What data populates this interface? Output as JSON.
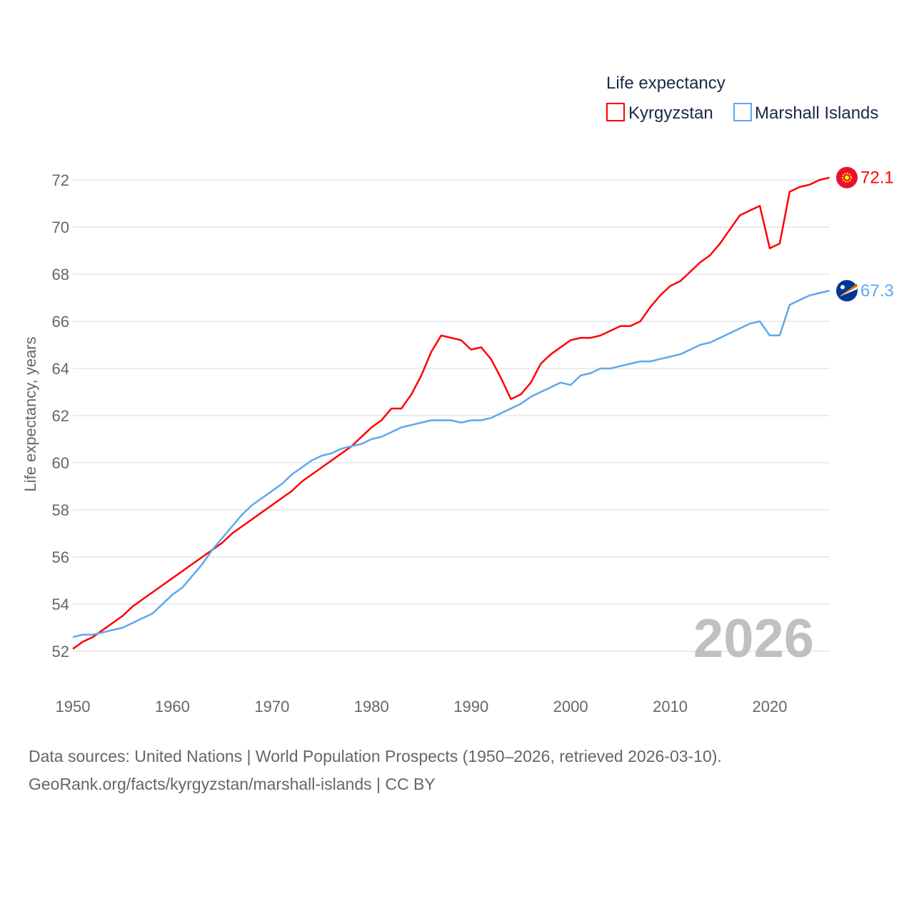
{
  "chart_data": {
    "type": "line",
    "legend_title": "Life expectancy",
    "legend_position": "top-right",
    "ylabel": "Life expectancy, years",
    "xlabel": "",
    "xlim": [
      1950,
      2026
    ],
    "ylim": [
      51,
      73
    ],
    "x_ticks": [
      1950,
      1960,
      1970,
      1980,
      1990,
      2000,
      2010,
      2020
    ],
    "y_ticks": [
      52,
      54,
      56,
      58,
      60,
      62,
      64,
      66,
      68,
      70,
      72
    ],
    "grid": true,
    "year_watermark": "2026",
    "x_start": 1950,
    "series": [
      {
        "name": "Kyrgyzstan",
        "color": "#ff0000",
        "end_label": "72.1",
        "flag": "kyrgyzstan-flag",
        "values": [
          52.1,
          52.4,
          52.6,
          52.9,
          53.2,
          53.5,
          53.9,
          54.2,
          54.5,
          54.8,
          55.1,
          55.4,
          55.7,
          56.0,
          56.3,
          56.6,
          57.0,
          57.3,
          57.6,
          57.9,
          58.2,
          58.5,
          58.8,
          59.2,
          59.5,
          59.8,
          60.1,
          60.4,
          60.7,
          61.1,
          61.5,
          61.8,
          62.3,
          62.3,
          62.9,
          63.7,
          64.7,
          65.4,
          65.3,
          65.2,
          64.8,
          64.9,
          64.4,
          63.6,
          62.7,
          62.9,
          63.4,
          64.2,
          64.6,
          64.9,
          65.2,
          65.3,
          65.3,
          65.4,
          65.6,
          65.8,
          65.8,
          66.0,
          66.6,
          67.1,
          67.5,
          67.7,
          68.1,
          68.5,
          68.8,
          69.3,
          69.9,
          70.5,
          70.7,
          70.9,
          69.1,
          69.3,
          71.5,
          71.7,
          71.8,
          72.0,
          72.1
        ]
      },
      {
        "name": "Marshall Islands",
        "color": "#5ea8ec",
        "end_label": "67.3",
        "flag": "marshall-islands-flag",
        "values": [
          52.6,
          52.7,
          52.7,
          52.8,
          52.9,
          53.0,
          53.2,
          53.4,
          53.6,
          54.0,
          54.4,
          54.7,
          55.2,
          55.7,
          56.3,
          56.8,
          57.3,
          57.8,
          58.2,
          58.5,
          58.8,
          59.1,
          59.5,
          59.8,
          60.1,
          60.3,
          60.4,
          60.6,
          60.7,
          60.8,
          61.0,
          61.1,
          61.3,
          61.5,
          61.6,
          61.7,
          61.8,
          61.8,
          61.8,
          61.7,
          61.8,
          61.8,
          61.9,
          62.1,
          62.3,
          62.5,
          62.8,
          63.0,
          63.2,
          63.4,
          63.3,
          63.7,
          63.8,
          64.0,
          64.0,
          64.1,
          64.2,
          64.3,
          64.3,
          64.4,
          64.5,
          64.6,
          64.8,
          65.0,
          65.1,
          65.3,
          65.5,
          65.7,
          65.9,
          66.0,
          65.4,
          65.4,
          66.7,
          66.9,
          67.1,
          67.2,
          67.3
        ]
      }
    ]
  },
  "footer": {
    "line1": "Data sources: United Nations | World Population Prospects (1950–2026, retrieved 2026-03-10).",
    "line2": "GeoRank.org/facts/kyrgyzstan/marshall-islands | CC BY"
  }
}
